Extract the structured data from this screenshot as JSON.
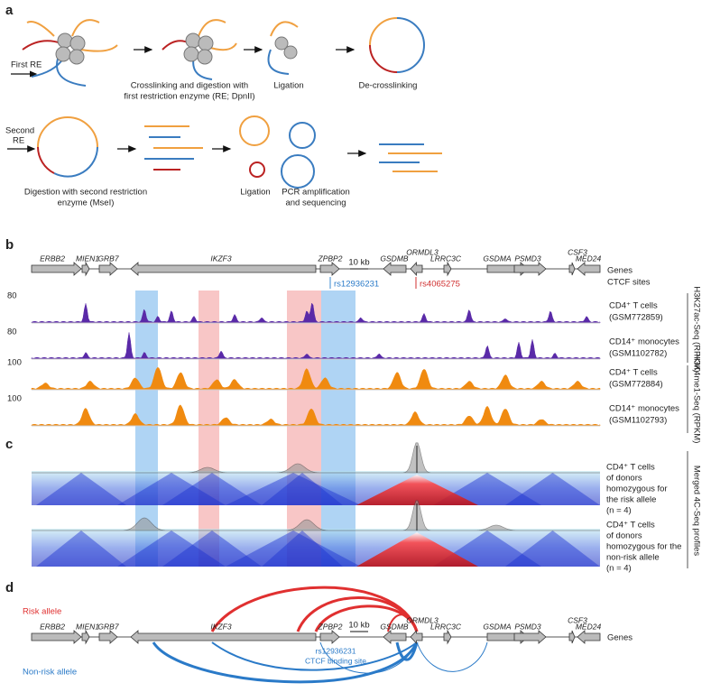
{
  "panel_a": {
    "label": "a",
    "first_re": "First RE",
    "second_re": [
      "Second",
      "RE"
    ],
    "row1_captions": [
      [
        "Crosslinking and digestion with",
        "first restriction enzyme (RE; DpnII)"
      ],
      [
        "Ligation"
      ],
      [
        "De-crosslinking"
      ]
    ],
    "row2_captions": [
      [
        "Digestion with second restriction",
        "enzyme (MseI)"
      ],
      [
        "Ligation"
      ],
      [
        "PCR amplification",
        "and sequencing"
      ]
    ]
  },
  "panel_b": {
    "label": "b",
    "genes": [
      "ERBB2",
      "MIEN1",
      "GRB7",
      "IKZF3",
      "ZPBP2",
      "GSDMB",
      "ORMDL3",
      "LRRC3C",
      "GSDMA",
      "PSMD3",
      "CSF3",
      "MED24"
    ],
    "scale_bar": "10 kb",
    "genes_label": "Genes",
    "ctcf_label": "CTCF sites",
    "snps": [
      "rs12936231",
      "rs4065275"
    ],
    "tracks": [
      {
        "max": "80",
        "cell": "CD4⁺ T cells",
        "id": "(GSM772859)"
      },
      {
        "max": "80",
        "cell": "CD14⁺ monocytes",
        "id": "(GSM1102782)"
      },
      {
        "max": "100",
        "cell": "CD4⁺ T cells",
        "id": "(GSM772884)"
      },
      {
        "max": "100",
        "cell": "CD14⁺ monocytes",
        "id": "(GSM1102793)"
      }
    ],
    "groups": [
      "H3K27ac-Seq (RPKM)",
      "H3K4me1-Seq (RPKM)"
    ]
  },
  "panel_c": {
    "label": "c",
    "profiles": [
      [
        "CD4⁺ T cells",
        "of donors",
        "homozygous for",
        "the risk allele",
        "(n = 4)"
      ],
      [
        "CD4⁺ T cells",
        "of donors",
        "homozygous for the",
        "non-risk allele",
        "(n = 4)"
      ]
    ],
    "group": "Merged 4C-Seq profiles"
  },
  "panel_d": {
    "label": "d",
    "risk": "Risk allele",
    "nonrisk": "Non-risk allele",
    "snp_note": [
      "rs12936231",
      "CTCF binding site"
    ]
  }
}
